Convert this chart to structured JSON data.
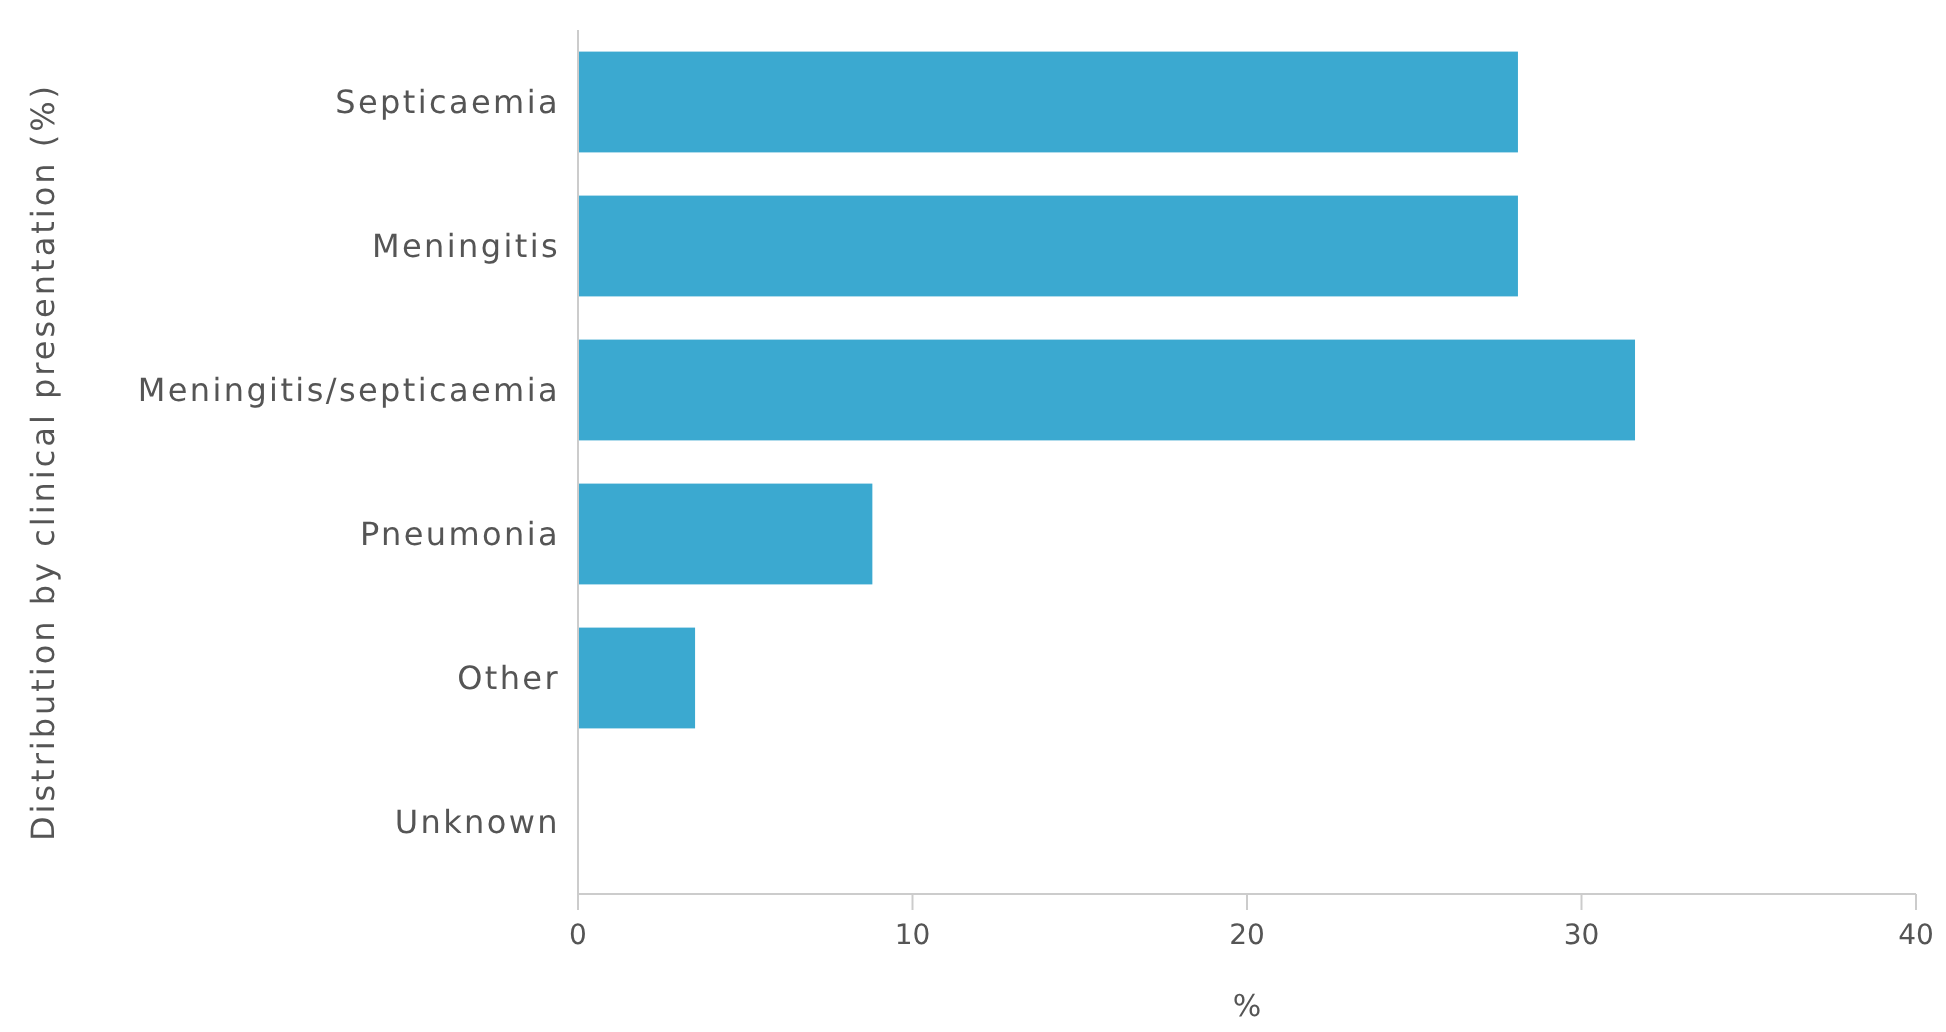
{
  "chart_data": {
    "type": "bar",
    "orientation": "horizontal",
    "ylabel": "Distribution by clinical presentation (%)",
    "xlabel": "%",
    "categories": [
      "Septicaemia",
      "Meningitis",
      "Meningitis/septicaemia",
      "Pneumonia",
      "Other",
      "Unknown"
    ],
    "values": [
      28.1,
      28.1,
      31.6,
      8.8,
      3.5,
      0
    ],
    "color": "#3ba9d0",
    "xlim": [
      0,
      40
    ],
    "xticks": [
      0,
      10,
      20,
      30,
      40
    ],
    "grid": false
  }
}
